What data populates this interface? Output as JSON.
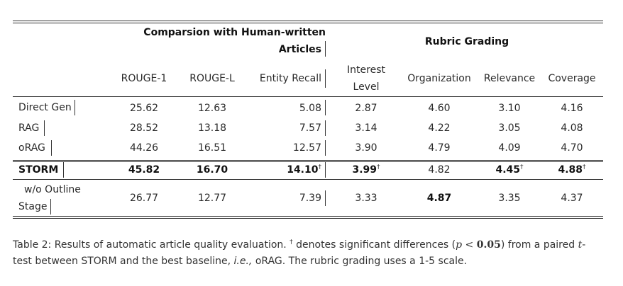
{
  "header": {
    "group1_line1": "Comparsion with Human-written",
    "group1_line2": "Articles",
    "group2": "Rubric Grading",
    "cols": [
      "ROUGE-1",
      "ROUGE-L",
      "Entity Recall",
      "Interest",
      "Level",
      "Organization",
      "Relevance",
      "Coverage"
    ]
  },
  "rows": [
    {
      "name": "Direct Gen",
      "cells": [
        "25.62",
        "12.63",
        "5.08",
        "2.87",
        "4.60",
        "3.10",
        "4.16"
      ]
    },
    {
      "name": "RAG",
      "cells": [
        "28.52",
        "13.18",
        "7.57",
        "3.14",
        "4.22",
        "3.05",
        "4.08"
      ]
    },
    {
      "name": "oRAG",
      "cells": [
        "44.26",
        "16.51",
        "12.57",
        "3.90",
        "4.79",
        "4.09",
        "4.70"
      ]
    },
    {
      "name": "STORM",
      "cells": [
        "45.82",
        "16.70",
        "14.10",
        "3.99",
        "4.82",
        "4.45",
        "4.88"
      ]
    },
    {
      "name_line1": "w/o Outline",
      "name_line2": "Stage",
      "cells": [
        "26.77",
        "12.77",
        "7.39",
        "3.33",
        "4.87",
        "3.35",
        "4.37"
      ]
    }
  ],
  "dagger": "†",
  "caption": {
    "part1": "Table 2: Results of automatic article quality evaluation.",
    "dagger": "†",
    "part2": "denotes significant differences (",
    "p": "p",
    "lt": " < ",
    "val": "0.05",
    "part3": ") from a paired",
    "t": "t",
    "part4": "-",
    "part5": "test between STORM and the best baseline,",
    "ie": "i.e.,",
    "part6": "oRAG. The rubric grading uses a 1-5 scale."
  }
}
